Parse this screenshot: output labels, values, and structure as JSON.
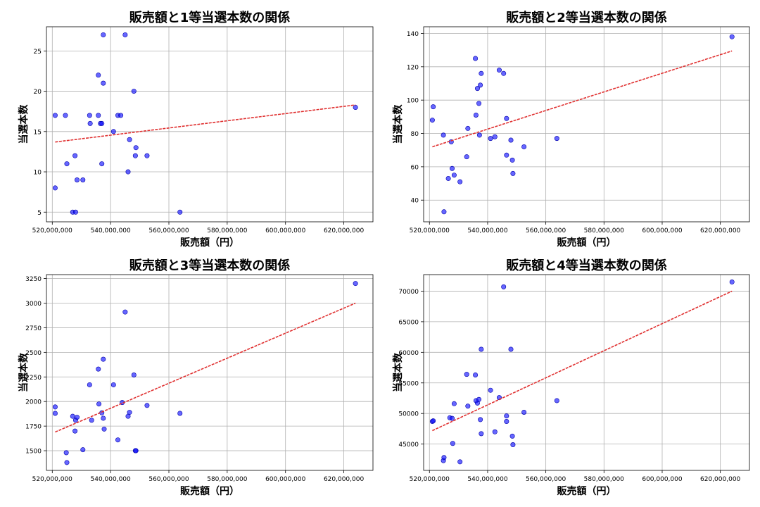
{
  "colors": {
    "points": "#0000ff",
    "trend": "#e03030",
    "grid": "#b0b0b0"
  },
  "chart_data": [
    {
      "type": "scatter",
      "title": "販売額と1等当選本数の関係",
      "xlabel": "販売額（円）",
      "ylabel": "当選本数",
      "grid": true,
      "xlim": [
        518000000,
        630000000
      ],
      "ylim": [
        3.8,
        28.0
      ],
      "xticks": [
        520000000,
        540000000,
        560000000,
        580000000,
        600000000,
        620000000
      ],
      "xtick_labels": [
        "520,000,000",
        "540,000,000",
        "560,000,000",
        "580,000,000",
        "600,000,000",
        "620,000,000"
      ],
      "yticks": [
        5,
        10,
        15,
        20,
        25
      ],
      "ytick_labels": [
        "5",
        "10",
        "15",
        "20",
        "25"
      ],
      "trendline": {
        "x": [
          521000000,
          624000000
        ],
        "y": [
          13.7,
          18.3
        ]
      },
      "points": [
        [
          521000000,
          8
        ],
        [
          521000000,
          17
        ],
        [
          524500000,
          17
        ],
        [
          525000000,
          11
        ],
        [
          527000000,
          5
        ],
        [
          528000000,
          5
        ],
        [
          527800000,
          12
        ],
        [
          528500000,
          9
        ],
        [
          530500000,
          9
        ],
        [
          532800000,
          17
        ],
        [
          533000000,
          16
        ],
        [
          535800000,
          22
        ],
        [
          535800000,
          17
        ],
        [
          536500000,
          16
        ],
        [
          537000000,
          16
        ],
        [
          537000000,
          11
        ],
        [
          537500000,
          21
        ],
        [
          537500000,
          27
        ],
        [
          541000000,
          15
        ],
        [
          542500000,
          17
        ],
        [
          543500000,
          17
        ],
        [
          545000000,
          27
        ],
        [
          546000000,
          10
        ],
        [
          546500000,
          14
        ],
        [
          548000000,
          20
        ],
        [
          548500000,
          12
        ],
        [
          548700000,
          13
        ],
        [
          552500000,
          12
        ],
        [
          563800000,
          5
        ],
        [
          624000000,
          18
        ]
      ]
    },
    {
      "type": "scatter",
      "title": "販売額と2等当選本数の関係",
      "xlabel": "販売額（円）",
      "ylabel": "当選本数",
      "grid": true,
      "xlim": [
        518000000,
        630000000
      ],
      "ylim": [
        27,
        144
      ],
      "xticks": [
        520000000,
        540000000,
        560000000,
        580000000,
        600000000,
        620000000
      ],
      "xtick_labels": [
        "520,000,000",
        "540,000,000",
        "560,000,000",
        "580,000,000",
        "600,000,000",
        "620,000,000"
      ],
      "yticks": [
        40,
        60,
        80,
        100,
        120,
        140
      ],
      "ytick_labels": [
        "40",
        "60",
        "80",
        "100",
        "120",
        "140"
      ],
      "trendline": {
        "x": [
          521000000,
          624000000
        ],
        "y": [
          72,
          129.5
        ]
      },
      "points": [
        [
          521000000,
          88
        ],
        [
          521300000,
          96
        ],
        [
          524800000,
          79
        ],
        [
          525000000,
          33
        ],
        [
          526500000,
          53
        ],
        [
          527500000,
          75
        ],
        [
          527800000,
          59
        ],
        [
          528500000,
          55
        ],
        [
          530500000,
          51
        ],
        [
          532800000,
          66
        ],
        [
          533200000,
          83
        ],
        [
          535800000,
          125
        ],
        [
          536000000,
          91
        ],
        [
          536500000,
          107
        ],
        [
          537000000,
          98
        ],
        [
          537200000,
          79
        ],
        [
          537500000,
          109
        ],
        [
          537800000,
          116
        ],
        [
          541000000,
          77
        ],
        [
          542500000,
          78
        ],
        [
          544000000,
          118
        ],
        [
          545500000,
          116
        ],
        [
          546500000,
          89
        ],
        [
          546500000,
          67
        ],
        [
          548000000,
          76
        ],
        [
          548500000,
          64
        ],
        [
          548700000,
          56
        ],
        [
          552500000,
          72
        ],
        [
          563800000,
          77
        ],
        [
          624000000,
          138
        ]
      ]
    },
    {
      "type": "scatter",
      "title": "販売額と3等当選本数の関係",
      "xlabel": "販売額（円）",
      "ylabel": "当選本数",
      "grid": true,
      "xlim": [
        518000000,
        630000000
      ],
      "ylim": [
        1300,
        3290
      ],
      "xticks": [
        520000000,
        540000000,
        560000000,
        580000000,
        600000000,
        620000000
      ],
      "xtick_labels": [
        "520,000,000",
        "540,000,000",
        "560,000,000",
        "580,000,000",
        "600,000,000",
        "620,000,000"
      ],
      "yticks": [
        1500,
        1750,
        2000,
        2250,
        2500,
        2750,
        3000,
        3250
      ],
      "ytick_labels": [
        "1500",
        "1750",
        "2000",
        "2250",
        "2500",
        "2750",
        "3000",
        "3250"
      ],
      "trendline": {
        "x": [
          521000000,
          624000000
        ],
        "y": [
          1690,
          3000
        ]
      },
      "points": [
        [
          521000000,
          1880
        ],
        [
          521000000,
          1945
        ],
        [
          524800000,
          1480
        ],
        [
          525000000,
          1380
        ],
        [
          527000000,
          1850
        ],
        [
          527800000,
          1700
        ],
        [
          528000000,
          1810
        ],
        [
          528500000,
          1840
        ],
        [
          530500000,
          1510
        ],
        [
          532800000,
          2170
        ],
        [
          533500000,
          1810
        ],
        [
          535800000,
          2330
        ],
        [
          536000000,
          1975
        ],
        [
          537000000,
          1885
        ],
        [
          537500000,
          1830
        ],
        [
          537500000,
          2430
        ],
        [
          537800000,
          1720
        ],
        [
          541000000,
          2170
        ],
        [
          542500000,
          1610
        ],
        [
          544000000,
          1990
        ],
        [
          545000000,
          2910
        ],
        [
          546000000,
          1850
        ],
        [
          546500000,
          1890
        ],
        [
          548000000,
          2270
        ],
        [
          548500000,
          1500
        ],
        [
          548700000,
          1500
        ],
        [
          552500000,
          1960
        ],
        [
          563800000,
          1880
        ],
        [
          624000000,
          3200
        ]
      ]
    },
    {
      "type": "scatter",
      "title": "販売額と4等当選本数の関係",
      "xlabel": "販売額（円）",
      "ylabel": "当選本数",
      "grid": true,
      "xlim": [
        518000000,
        630000000
      ],
      "ylim": [
        40700,
        72700
      ],
      "xticks": [
        520000000,
        540000000,
        560000000,
        580000000,
        600000000,
        620000000
      ],
      "xtick_labels": [
        "520,000,000",
        "540,000,000",
        "560,000,000",
        "580,000,000",
        "600,000,000",
        "620,000,000"
      ],
      "yticks": [
        45000,
        50000,
        55000,
        60000,
        65000,
        70000
      ],
      "ytick_labels": [
        "45000",
        "50000",
        "55000",
        "60000",
        "65000",
        "70000"
      ],
      "trendline": {
        "x": [
          521000000,
          624000000
        ],
        "y": [
          47200,
          70000
        ]
      },
      "points": [
        [
          521000000,
          48700
        ],
        [
          521300000,
          48800
        ],
        [
          524800000,
          42300
        ],
        [
          525000000,
          42800
        ],
        [
          527000000,
          49300
        ],
        [
          527800000,
          49200
        ],
        [
          528000000,
          45100
        ],
        [
          528500000,
          51600
        ],
        [
          530500000,
          42100
        ],
        [
          532800000,
          56400
        ],
        [
          533200000,
          51200
        ],
        [
          535800000,
          56300
        ],
        [
          536000000,
          52100
        ],
        [
          536500000,
          51700
        ],
        [
          537000000,
          52300
        ],
        [
          537500000,
          49000
        ],
        [
          537800000,
          60500
        ],
        [
          537800000,
          46700
        ],
        [
          541000000,
          53800
        ],
        [
          542500000,
          47000
        ],
        [
          544000000,
          52600
        ],
        [
          545500000,
          70700
        ],
        [
          546500000,
          49600
        ],
        [
          546500000,
          48700
        ],
        [
          548000000,
          60500
        ],
        [
          548500000,
          46300
        ],
        [
          548700000,
          44900
        ],
        [
          552500000,
          50200
        ],
        [
          563800000,
          52100
        ],
        [
          624000000,
          71500
        ]
      ]
    }
  ]
}
